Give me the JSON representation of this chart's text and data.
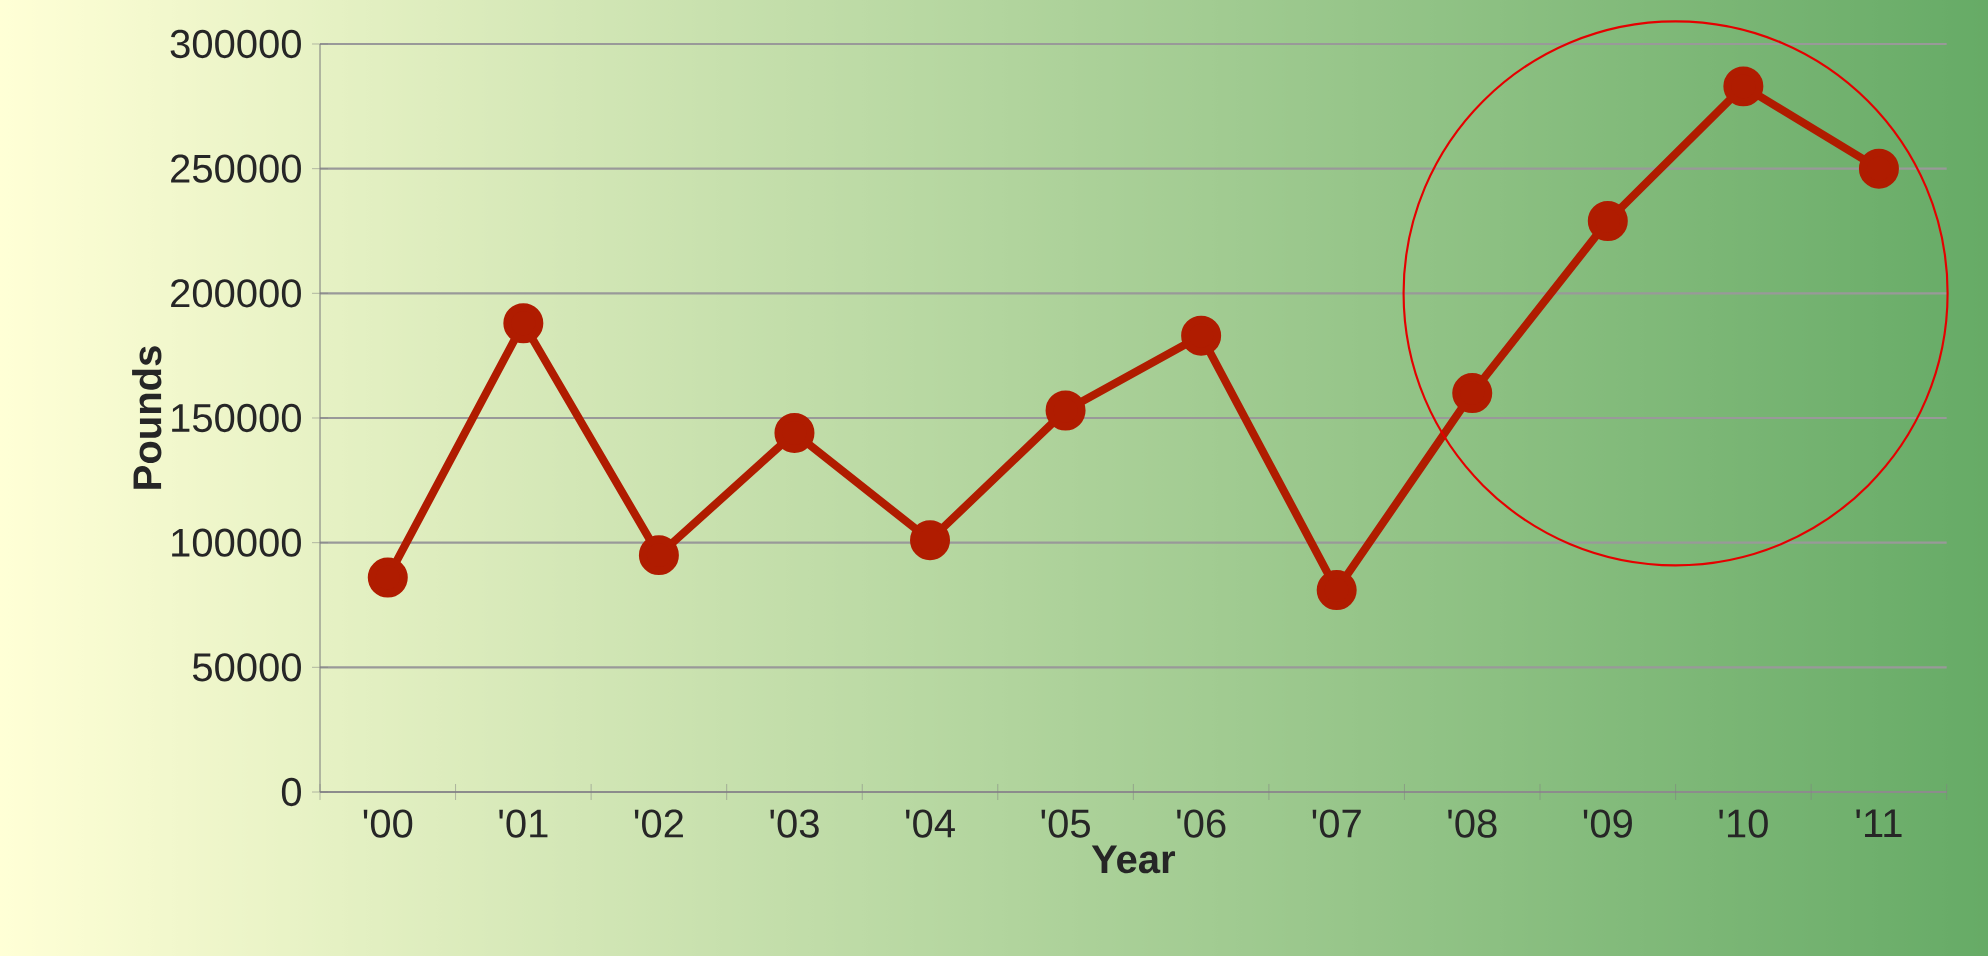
{
  "chart_data": {
    "type": "line",
    "xlabel": "Year",
    "ylabel": "Pounds",
    "categories": [
      "'00",
      "'01",
      "'02",
      "'03",
      "'04",
      "'05",
      "'06",
      "'07",
      "'08",
      "'09",
      "'10",
      "'11"
    ],
    "values": [
      86000,
      188000,
      95000,
      144000,
      101000,
      153000,
      183000,
      81000,
      160000,
      229000,
      283000,
      250000
    ],
    "color": "#b01c00",
    "ylim": [
      0,
      300000
    ],
    "yticks": [
      0,
      50000,
      100000,
      150000,
      200000,
      250000,
      300000
    ],
    "grid": "y",
    "legend": false,
    "marker": "circle",
    "line_style": "solid"
  }
}
